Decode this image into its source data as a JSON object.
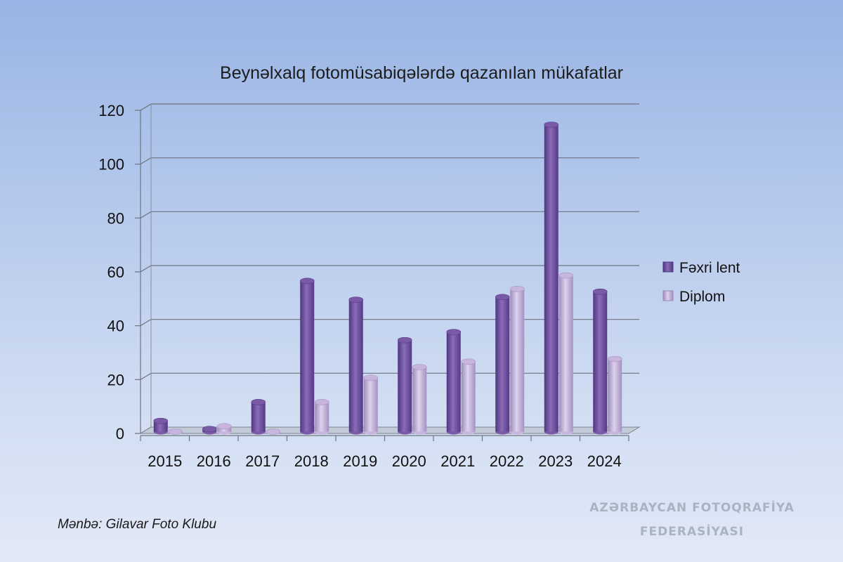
{
  "chart_data": {
    "type": "bar",
    "title": "Beynəlxalq fotomüsabiqələrdə qazanılan mükafatlar",
    "categories": [
      "2015",
      "2016",
      "2017",
      "2018",
      "2019",
      "2020",
      "2021",
      "2022",
      "2023",
      "2024"
    ],
    "series": [
      {
        "name": "Fəxri lent",
        "values": [
          4,
          1,
          11,
          56,
          49,
          34,
          37,
          50,
          114,
          52
        ]
      },
      {
        "name": "Diplom",
        "values": [
          0,
          2,
          0,
          11,
          20,
          24,
          26,
          53,
          58,
          27
        ]
      }
    ],
    "ylim": [
      0,
      120
    ],
    "yticks": [
      0,
      20,
      40,
      60,
      80,
      100,
      120
    ],
    "grid": true,
    "legend_position": "right",
    "colors": {
      "series0": "#7a5aa6",
      "series1": "#c7b5dd"
    }
  },
  "footer": {
    "source": "Mənbə: Gilavar Foto Klubu",
    "watermark_line1": "AZƏRBAYCAN FOTOQRAFİYA",
    "watermark_line2": "FEDERASİYASI"
  }
}
